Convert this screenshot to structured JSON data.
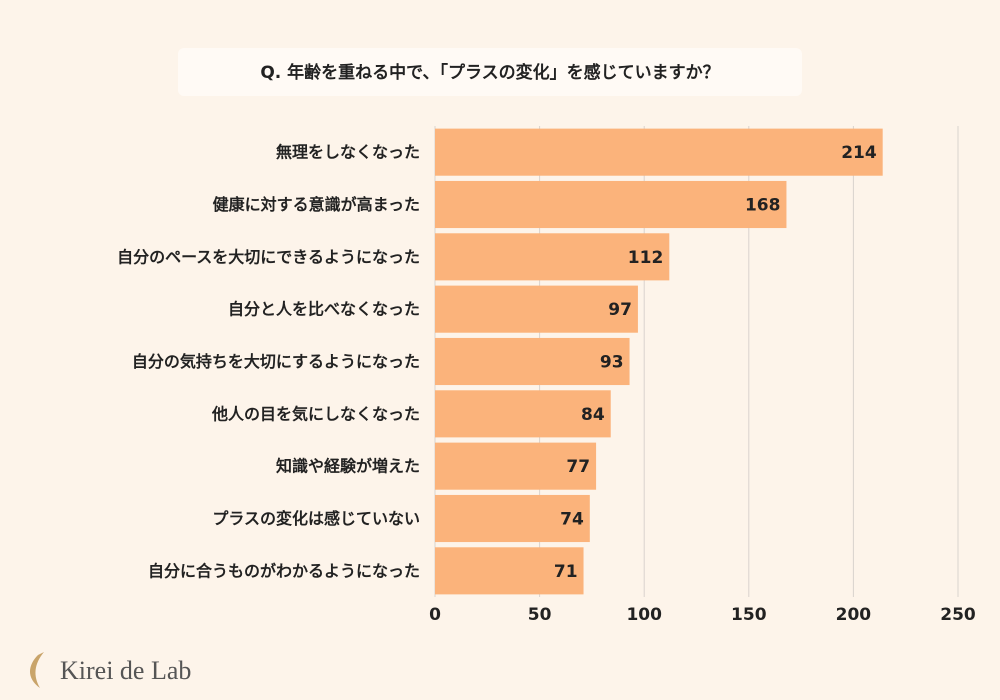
{
  "chart_data": {
    "type": "barh",
    "title": "Q. 年齢を重ねる中で、「プラスの変化」を感じていますか？",
    "categories": [
      "無理をしなくなった",
      "健康に対する意識が高まった",
      "自分のペースを大切にできるようになった",
      "自分と人を比べなくなった",
      "自分の気持ちを大切にするようになった",
      "他人の目を気にしなくなった",
      "知識や経験が増えた",
      "プラスの変化は感じていない",
      "自分に合うものがわかるようになった"
    ],
    "values": [
      214,
      168,
      112,
      97,
      93,
      84,
      77,
      74,
      71
    ],
    "color": "#fbb37b",
    "xlim": [
      0,
      250
    ],
    "xticks": [
      0,
      50,
      100,
      150,
      200,
      250
    ],
    "grid": true
  },
  "brand": "Kirei de Lab"
}
